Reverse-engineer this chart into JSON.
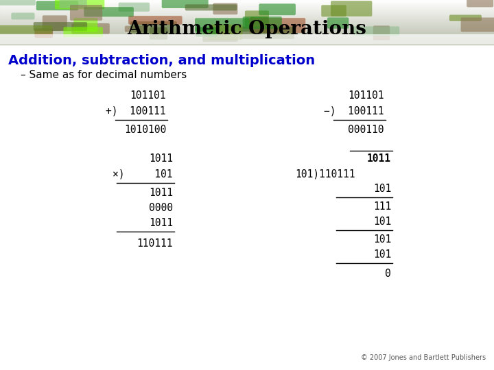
{
  "title": "Arithmetic Operations",
  "subtitle": "Addition, subtraction, and multiplication",
  "bullet": "– Same as for decimal numbers",
  "title_color": "#000000",
  "subtitle_color": "#0000CC",
  "bullet_color": "#000000",
  "body_color": "#000000",
  "bg_color": "#FFFFFF",
  "footer": "© 2007 Jones and Bartlett Publishers",
  "top_strip_color": "#b8c8b0",
  "top_fade_color": "#e8eee8"
}
